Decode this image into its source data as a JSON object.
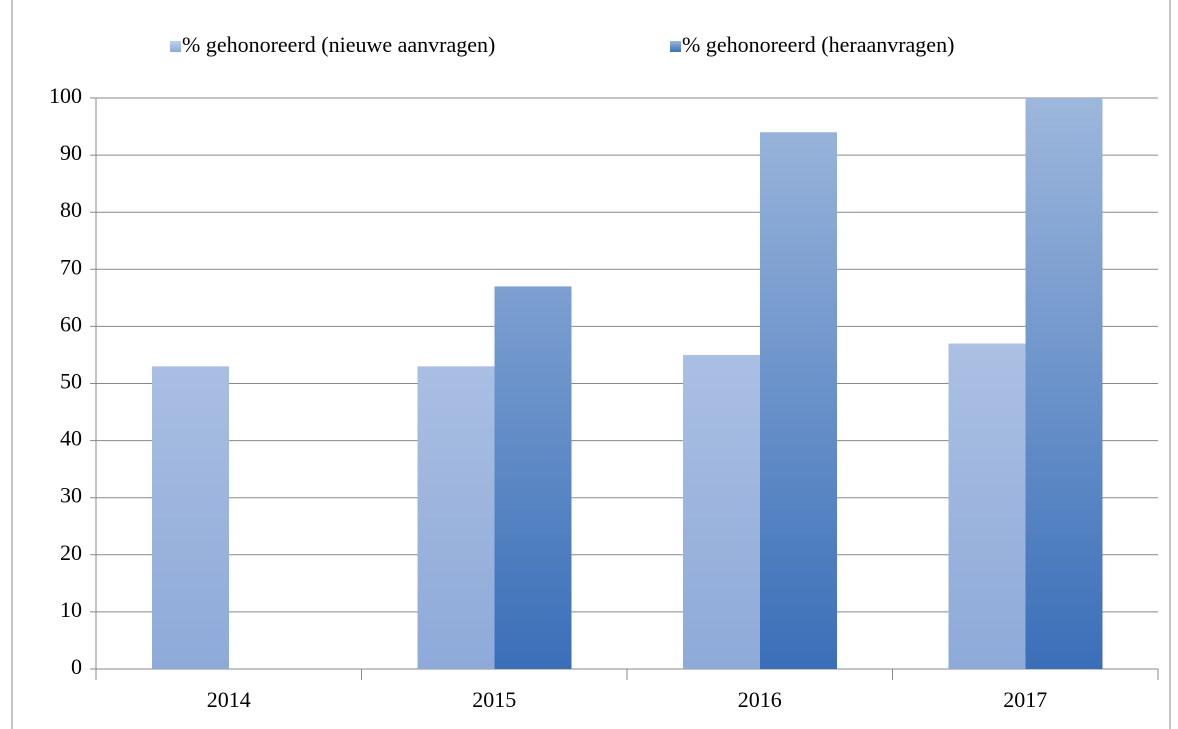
{
  "chart_data": {
    "type": "bar",
    "categories": [
      "2014",
      "2015",
      "2016",
      "2017"
    ],
    "series": [
      {
        "name": "% gehonoreerd (nieuwe aanvragen)",
        "color": "#8eaad9",
        "values": [
          53,
          53,
          55,
          57
        ]
      },
      {
        "name": "% gehonoreerd (heraanvragen)",
        "color": "#3a6fb8",
        "values": [
          null,
          67,
          94,
          100
        ]
      }
    ],
    "ylim": [
      0,
      100
    ],
    "yticks": [
      0,
      10,
      20,
      30,
      40,
      50,
      60,
      70,
      80,
      90,
      100
    ],
    "grid": true,
    "legend": "top"
  }
}
